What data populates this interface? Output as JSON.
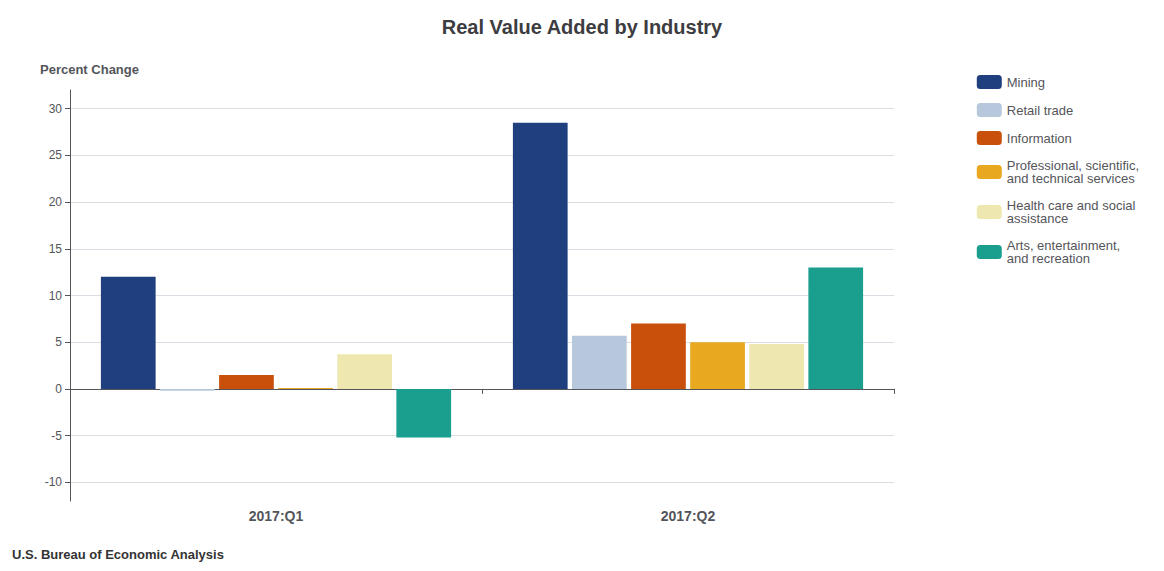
{
  "chart_data": {
    "type": "bar",
    "title": "Real Value Added by Industry",
    "ylabel": "Percent Change",
    "annotations": [
      "U.S. Bureau of Economic Analysis"
    ],
    "categories": [
      "2017:Q1",
      "2017:Q2"
    ],
    "series": [
      {
        "name": "Mining",
        "color": "#1F3F7F",
        "values": [
          12.0,
          28.5
        ]
      },
      {
        "name": "Retail trade",
        "color": "#B8C8DC",
        "values": [
          -0.2,
          5.7
        ]
      },
      {
        "name": "Information",
        "color": "#C8500A",
        "values": [
          1.5,
          7.0
        ]
      },
      {
        "name": "Professional, scientific,\nand technical services",
        "color": "#E8A820",
        "values": [
          0.1,
          5.0
        ]
      },
      {
        "name": "Health care and social\nassistance",
        "color": "#EEE8B0",
        "values": [
          3.7,
          4.8
        ]
      },
      {
        "name": "Arts, entertainment,\nand recreation",
        "color": "#1A9E8E",
        "values": [
          -5.2,
          13.0
        ]
      }
    ],
    "ylim": [
      -12,
      32
    ],
    "yticks": [
      -10,
      -5,
      0,
      5,
      10,
      15,
      20,
      25,
      30
    ],
    "grid": true,
    "legend": "right"
  }
}
